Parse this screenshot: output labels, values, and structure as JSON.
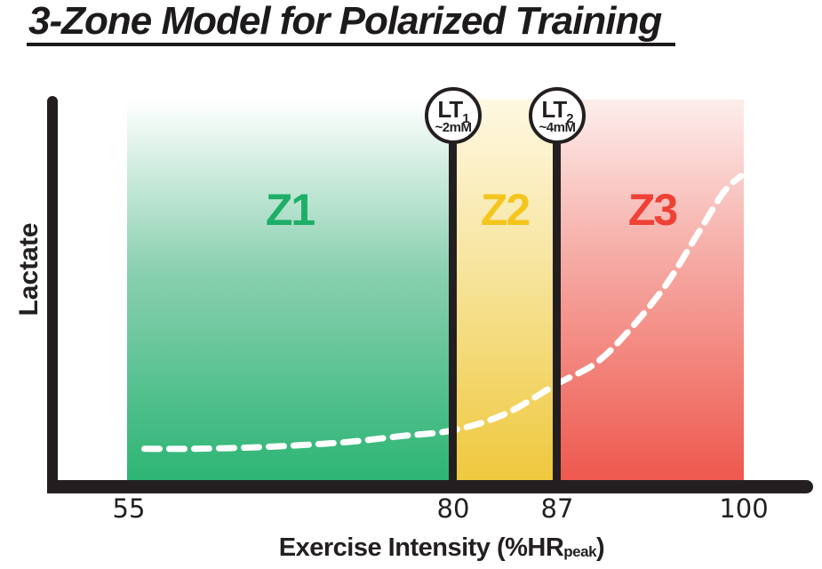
{
  "title": "3-Zone Model for Polarized Training",
  "axes": {
    "y_label": "Lactate",
    "x_label_prefix": "Exercise Intensity (%HR",
    "x_label_sub": "peak",
    "x_label_suffix": ")"
  },
  "chart_data": {
    "type": "line",
    "title": "3-Zone Model for Polarized Training",
    "xlabel": "Exercise Intensity (%HRpeak)",
    "ylabel": "Lactate",
    "grid": false,
    "legend": "none",
    "x_ticks": [
      "55",
      "80",
      "87",
      "100"
    ],
    "x_range_shown": [
      55,
      100
    ],
    "zones": [
      {
        "label": "Z1",
        "x_range": [
          55,
          80
        ],
        "fill_color": "#2CB574",
        "label_color": "#1EAE68"
      },
      {
        "label": "Z2",
        "x_range": [
          80,
          87
        ],
        "fill_color": "#EFC83D",
        "label_color": "#F4C51D"
      },
      {
        "label": "Z3",
        "x_range": [
          87,
          100
        ],
        "fill_color": "#EE584D",
        "label_color": "#EF4136"
      }
    ],
    "thresholds": [
      {
        "label": "LT",
        "sub": "1",
        "value": "~2mM",
        "x": 80
      },
      {
        "label": "LT",
        "sub": "2",
        "value": "~4mM",
        "x": 87
      }
    ],
    "curve": {
      "name": "lactate-curve",
      "style": "dashed",
      "color": "#FFFFFF",
      "x_unit": "%HRpeak",
      "y_unit": "mM",
      "points": [
        [
          56.2,
          1.2
        ],
        [
          60,
          1.2
        ],
        [
          64,
          1.25
        ],
        [
          68,
          1.35
        ],
        [
          72,
          1.5
        ],
        [
          76,
          1.75
        ],
        [
          80,
          2
        ],
        [
          83.5,
          2.7
        ],
        [
          87,
          4
        ],
        [
          89.7,
          4.9
        ],
        [
          92,
          6.3
        ],
        [
          94.6,
          8.3
        ],
        [
          96.8,
          10.5
        ],
        [
          98.6,
          12.3
        ],
        [
          99.8,
          13
        ]
      ]
    }
  },
  "colors": {
    "ink": "#231F20",
    "background": "#FFFFFF"
  }
}
